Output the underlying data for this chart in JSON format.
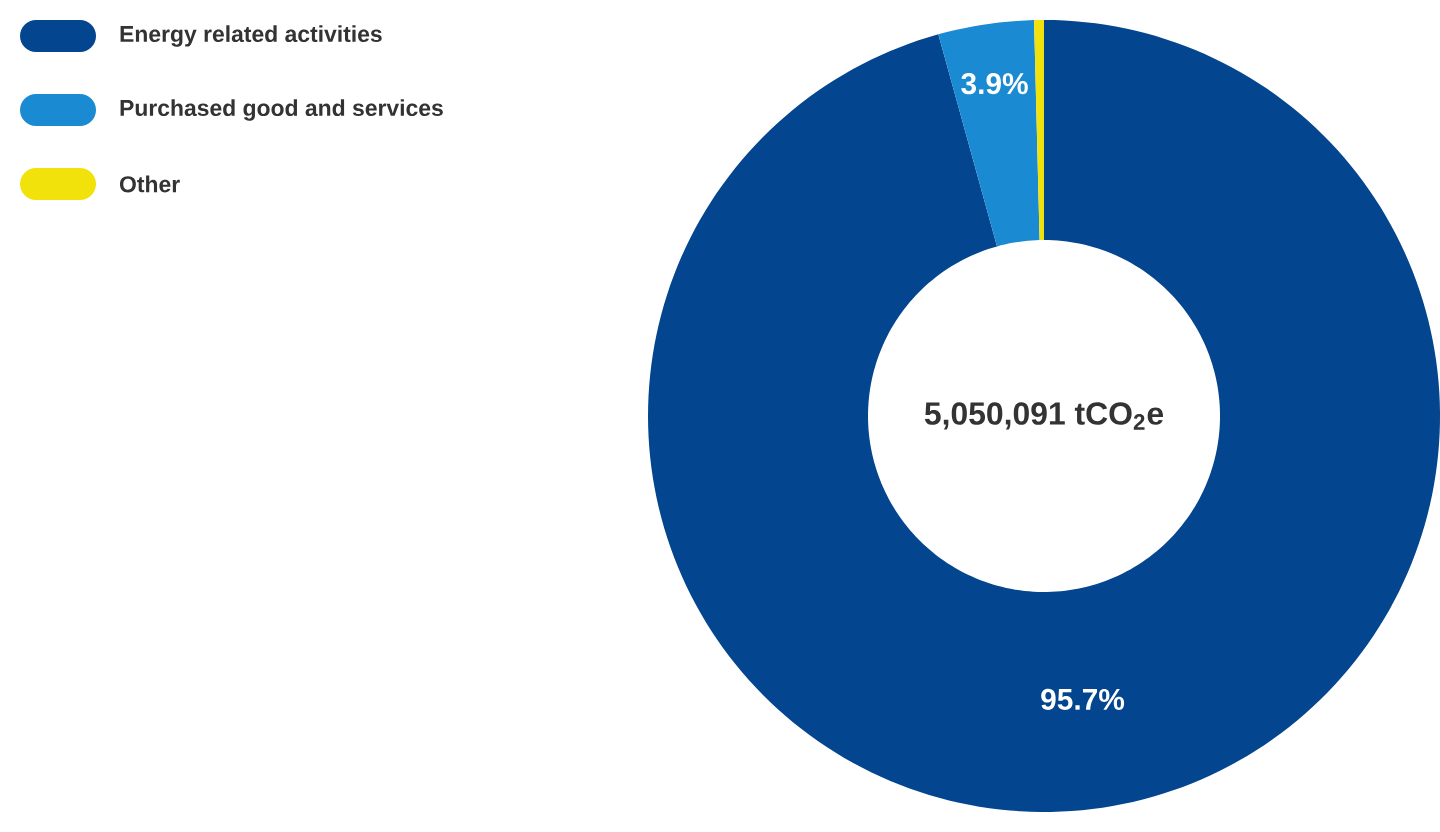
{
  "chart_data": {
    "type": "donut",
    "categories": [
      "Energy related activities",
      "Purchased good and services",
      "Other"
    ],
    "values": [
      95.7,
      3.9,
      0.4
    ],
    "colors": [
      "#03458f",
      "#1a8ad2",
      "#f2e20c"
    ],
    "value_labels": [
      "95.7%",
      "3.9%",
      null
    ],
    "annotations": [
      "5,050,091 tCO$_{2}$e"
    ],
    "legend": "top left"
  }
}
